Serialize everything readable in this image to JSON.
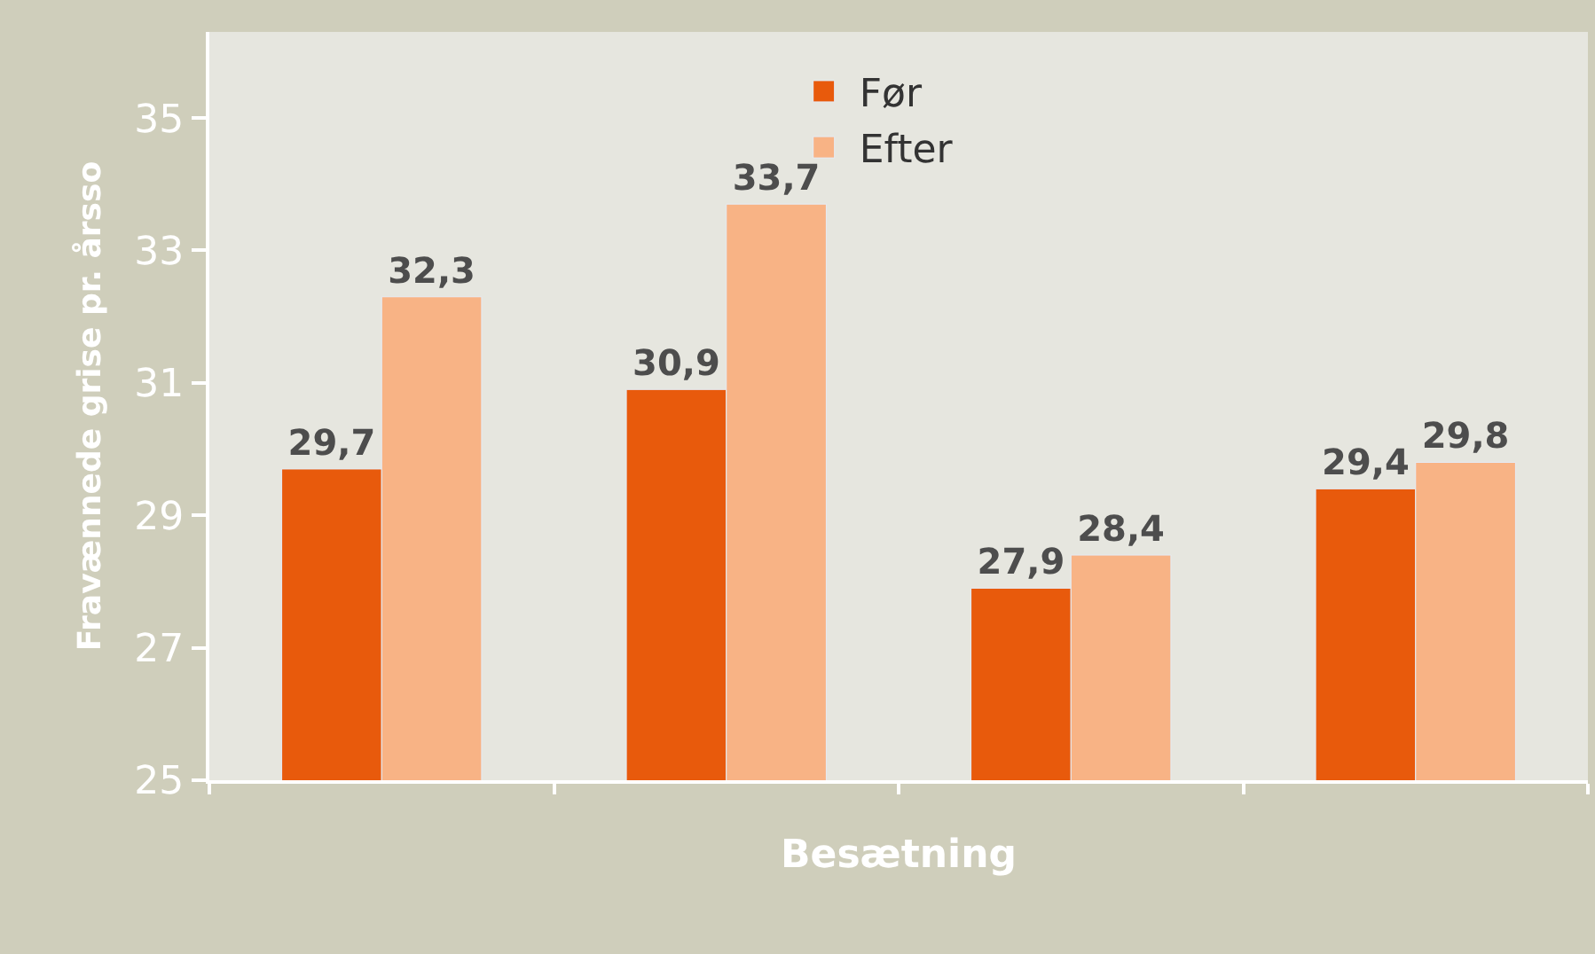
{
  "chart_data": {
    "type": "bar",
    "xlabel": "Besætning",
    "ylabel": "Fravænnede grise pr. årsso",
    "categories": [
      null,
      null,
      null,
      null
    ],
    "series": [
      {
        "name": "Før",
        "color": "#e85a0c",
        "values": [
          29.7,
          30.9,
          27.9,
          29.4
        ],
        "value_labels": [
          "29,7",
          "30,9",
          "27,9",
          "29,4"
        ]
      },
      {
        "name": "Efter",
        "color": "#f8b385",
        "values": [
          32.3,
          33.7,
          28.4,
          29.8
        ],
        "value_labels": [
          "32,3",
          "33,7",
          "28,4",
          "29,8"
        ]
      }
    ],
    "ylim": [
      25,
      36.3
    ],
    "yticks": [
      25,
      27,
      29,
      31,
      33,
      35
    ],
    "grid": false,
    "legend": "top"
  }
}
